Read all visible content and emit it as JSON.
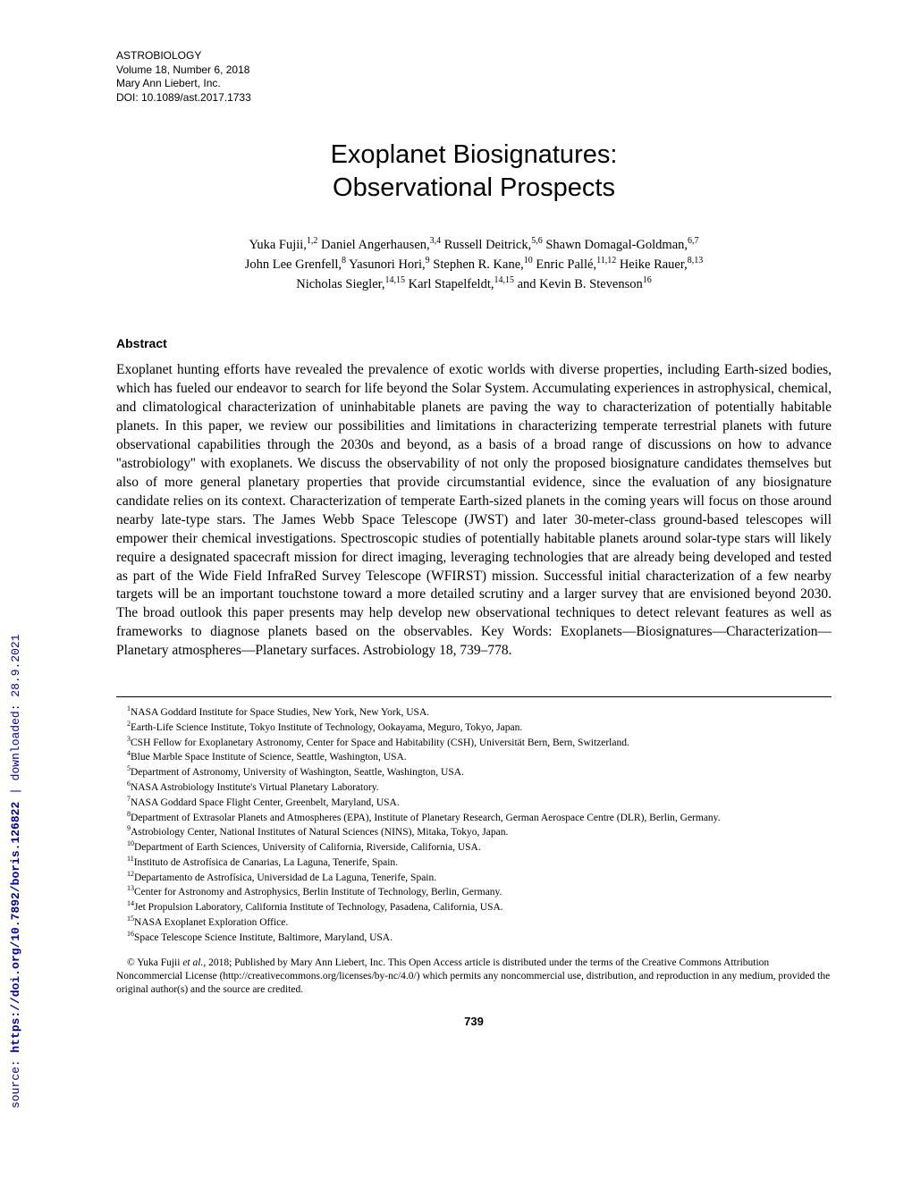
{
  "sidebar": {
    "source_label": "source: ",
    "url": "https://doi.org/10.7892/boris.126822",
    "separator": " | ",
    "downloaded": "downloaded: 28.9.2021"
  },
  "header": {
    "journal": "ASTROBIOLOGY",
    "volume": "Volume 18, Number 6, 2018",
    "publisher": "Mary Ann Liebert, Inc.",
    "doi": "DOI: 10.1089/ast.2017.1733"
  },
  "title": {
    "line1": "Exoplanet Biosignatures:",
    "line2": "Observational Prospects"
  },
  "authors": {
    "line1_html": "Yuka Fujii,<sup>1,2</sup> Daniel Angerhausen,<sup>3,4</sup> Russell Deitrick,<sup>5,6</sup> Shawn Domagal-Goldman,<sup>6,7</sup>",
    "line2_html": "John Lee Grenfell,<sup>8</sup> Yasunori Hori,<sup>9</sup> Stephen R. Kane,<sup>10</sup> Enric Pallé,<sup>11,12</sup> Heike Rauer,<sup>8,13</sup>",
    "line3_html": "Nicholas Siegler,<sup>14,15</sup> Karl Stapelfeldt,<sup>14,15</sup> and Kevin B. Stevenson<sup>16</sup>"
  },
  "abstract": {
    "heading": "Abstract",
    "text": "Exoplanet hunting efforts have revealed the prevalence of exotic worlds with diverse properties, including Earth-sized bodies, which has fueled our endeavor to search for life beyond the Solar System. Accumulating experiences in astrophysical, chemical, and climatological characterization of uninhabitable planets are paving the way to characterization of potentially habitable planets. In this paper, we review our possibilities and limitations in characterizing temperate terrestrial planets with future observational capabilities through the 2030s and beyond, as a basis of a broad range of discussions on how to advance ''astrobiology'' with exoplanets. We discuss the observability of not only the proposed biosignature candidates themselves but also of more general planetary properties that provide circumstantial evidence, since the evaluation of any biosignature candidate relies on its context. Characterization of temperate Earth-sized planets in the coming years will focus on those around nearby late-type stars. The James Webb Space Telescope (JWST) and later 30-meter-class ground-based telescopes will empower their chemical investigations. Spectroscopic studies of potentially habitable planets around solar-type stars will likely require a designated spacecraft mission for direct imaging, leveraging technologies that are already being developed and tested as part of the Wide Field InfraRed Survey Telescope (WFIRST) mission. Successful initial characterization of a few nearby targets will be an important touchstone toward a more detailed scrutiny and a larger survey that are envisioned beyond 2030. The broad outlook this paper presents may help develop new observational techniques to detect relevant features as well as frameworks to diagnose planets based on the observables. Key Words: Exoplanets—Biosignatures—Characterization—Planetary atmospheres—Planetary surfaces. Astrobiology 18, 739–778."
  },
  "affiliations": [
    {
      "n": "1",
      "text": "NASA Goddard Institute for Space Studies, New York, New York, USA."
    },
    {
      "n": "2",
      "text": "Earth-Life Science Institute, Tokyo Institute of Technology, Ookayama, Meguro, Tokyo, Japan."
    },
    {
      "n": "3",
      "text": "CSH Fellow for Exoplanetary Astronomy, Center for Space and Habitability (CSH), Universität Bern, Bern, Switzerland."
    },
    {
      "n": "4",
      "text": "Blue Marble Space Institute of Science, Seattle, Washington, USA."
    },
    {
      "n": "5",
      "text": "Department of Astronomy, University of Washington, Seattle, Washington, USA."
    },
    {
      "n": "6",
      "text": "NASA Astrobiology Institute's Virtual Planetary Laboratory."
    },
    {
      "n": "7",
      "text": "NASA Goddard Space Flight Center, Greenbelt, Maryland, USA."
    },
    {
      "n": "8",
      "text": "Department of Extrasolar Planets and Atmospheres (EPA), Institute of Planetary Research, German Aerospace Centre (DLR), Berlin, Germany."
    },
    {
      "n": "9",
      "text": "Astrobiology Center, National Institutes of Natural Sciences (NINS), Mitaka, Tokyo, Japan."
    },
    {
      "n": "10",
      "text": "Department of Earth Sciences, University of California, Riverside, California, USA."
    },
    {
      "n": "11",
      "text": "Instituto de Astrofísica de Canarias, La Laguna, Tenerife, Spain."
    },
    {
      "n": "12",
      "text": "Departamento de Astrofísica, Universidad de La Laguna, Tenerife, Spain."
    },
    {
      "n": "13",
      "text": "Center for Astronomy and Astrophysics, Berlin Institute of Technology, Berlin, Germany."
    },
    {
      "n": "14",
      "text": "Jet Propulsion Laboratory, California Institute of Technology, Pasadena, California, USA."
    },
    {
      "n": "15",
      "text": "NASA Exoplanet Exploration Office."
    },
    {
      "n": "16",
      "text": "Space Telescope Science Institute, Baltimore, Maryland, USA."
    }
  ],
  "copyright": {
    "symbol": "©",
    "lead": " Yuka Fujii ",
    "etal": "et al.,",
    "rest": " 2018; Published by Mary Ann Liebert, Inc. This Open Access article is distributed under the terms of the Creative Commons Attribution Noncommercial License (http://creativecommons.org/licenses/by-nc/4.0/) which permits any noncommercial use, distribution, and reproduction in any medium, provided the original author(s) and the source are credited."
  },
  "page_number": "739"
}
